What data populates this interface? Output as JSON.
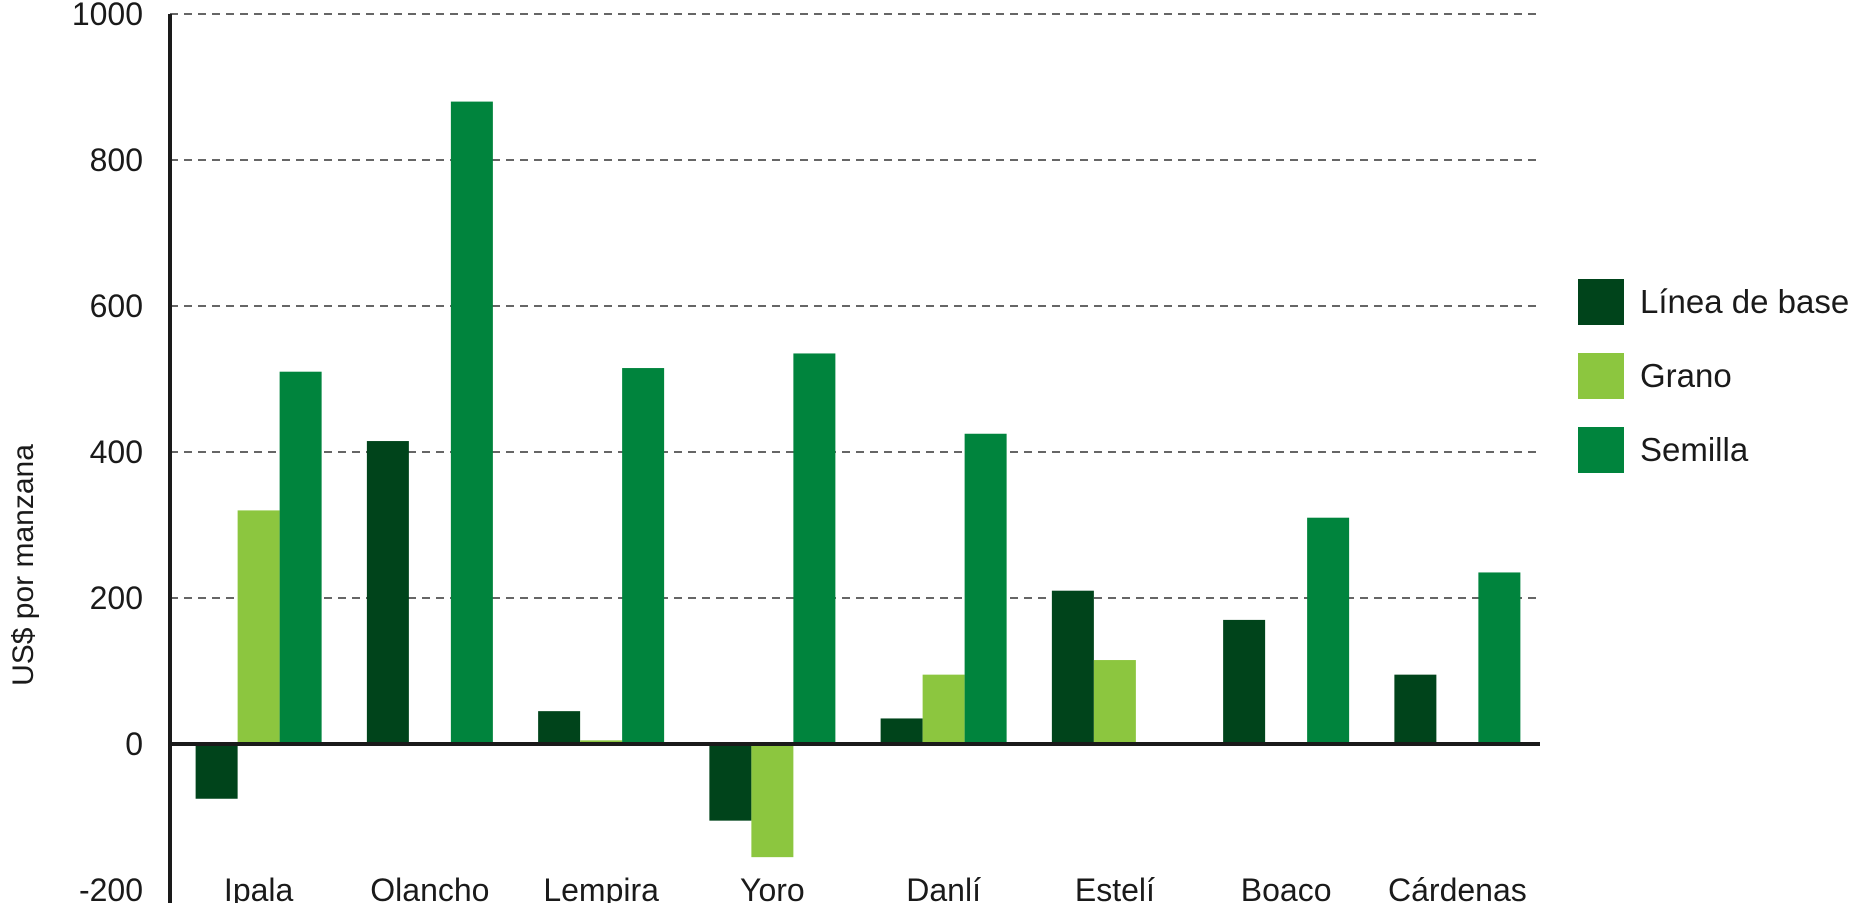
{
  "chart_data": {
    "type": "bar",
    "ylabel": "US$ por manzana",
    "xlabel": "",
    "ylim": [
      -200,
      1000
    ],
    "yticks": [
      1000,
      800,
      600,
      400,
      200,
      0,
      -200
    ],
    "grid": true,
    "legend_position": "right",
    "categories": [
      "Ipala",
      "Olancho",
      "Lempira",
      "Yoro",
      "Danlí",
      "Estelí",
      "Boaco",
      "Cárdenas"
    ],
    "series": [
      {
        "name": "Línea de base",
        "color": "#00441b",
        "values": [
          -75,
          415,
          45,
          -105,
          35,
          210,
          170,
          95
        ]
      },
      {
        "name": "Grano",
        "color": "#8cc63f",
        "values": [
          320,
          null,
          5,
          -155,
          95,
          115,
          null,
          null
        ]
      },
      {
        "name": "Semilla",
        "color": "#00843d",
        "values": [
          510,
          880,
          515,
          535,
          425,
          null,
          310,
          235
        ]
      }
    ]
  }
}
